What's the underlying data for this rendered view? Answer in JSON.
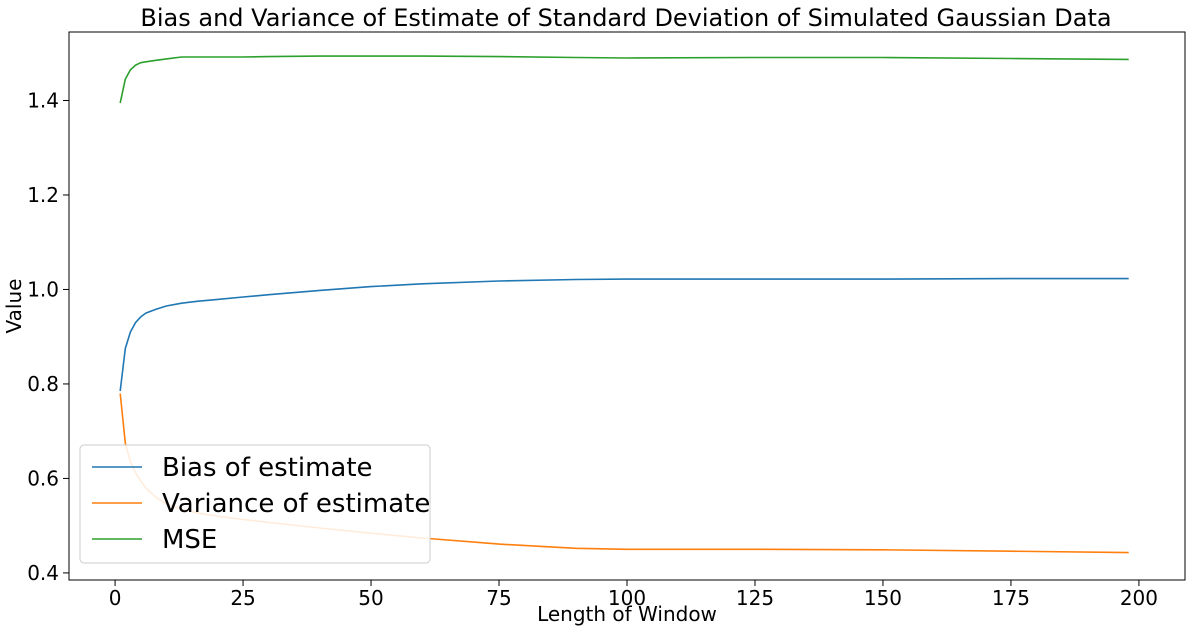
{
  "chart_data": {
    "type": "line",
    "title": "Bias and Variance of Estimate of Standard Deviation of Simulated Gaussian Data",
    "xlabel": "Length of Window",
    "ylabel": "Value",
    "xlim": [
      -9,
      209
    ],
    "ylim": [
      0.385,
      1.545
    ],
    "xticks": [
      0,
      25,
      50,
      75,
      100,
      125,
      150,
      175,
      200
    ],
    "yticks": [
      0.4,
      0.6,
      0.8,
      1.0,
      1.2,
      1.4
    ],
    "xtick_labels": [
      "0",
      "25",
      "50",
      "75",
      "100",
      "125",
      "150",
      "175",
      "200"
    ],
    "ytick_labels": [
      "0.4",
      "0.6",
      "0.8",
      "1.0",
      "1.2",
      "1.4"
    ],
    "grid": false,
    "legend_position": "lower-left",
    "series": [
      {
        "name": "Bias of estimate",
        "color": "#1f77b4",
        "x": [
          1,
          2,
          3,
          4,
          5,
          6,
          8,
          10,
          13,
          16,
          20,
          25,
          30,
          40,
          50,
          60,
          75,
          90,
          100,
          125,
          150,
          175,
          198
        ],
        "y": [
          0.785,
          0.875,
          0.91,
          0.93,
          0.942,
          0.95,
          0.958,
          0.965,
          0.971,
          0.975,
          0.979,
          0.984,
          0.989,
          0.998,
          1.006,
          1.012,
          1.018,
          1.021,
          1.022,
          1.022,
          1.022,
          1.023,
          1.023
        ]
      },
      {
        "name": "Variance of estimate",
        "color": "#ff7f0e",
        "x": [
          1,
          2,
          3,
          4,
          5,
          6,
          8,
          10,
          13,
          16,
          20,
          25,
          30,
          40,
          50,
          60,
          75,
          90,
          100,
          125,
          150,
          175,
          198
        ],
        "y": [
          0.78,
          0.675,
          0.635,
          0.612,
          0.595,
          0.58,
          0.56,
          0.546,
          0.535,
          0.527,
          0.52,
          0.513,
          0.507,
          0.495,
          0.484,
          0.474,
          0.461,
          0.452,
          0.45,
          0.45,
          0.449,
          0.446,
          0.443
        ]
      },
      {
        "name": "MSE",
        "color": "#2ca02c",
        "x": [
          1,
          2,
          3,
          4,
          5,
          6,
          8,
          10,
          13,
          16,
          20,
          25,
          30,
          40,
          50,
          60,
          75,
          90,
          100,
          125,
          150,
          175,
          198
        ],
        "y": [
          1.395,
          1.445,
          1.465,
          1.475,
          1.48,
          1.482,
          1.485,
          1.488,
          1.492,
          1.492,
          1.492,
          1.492,
          1.493,
          1.494,
          1.494,
          1.494,
          1.493,
          1.491,
          1.49,
          1.491,
          1.491,
          1.489,
          1.487
        ]
      }
    ]
  }
}
